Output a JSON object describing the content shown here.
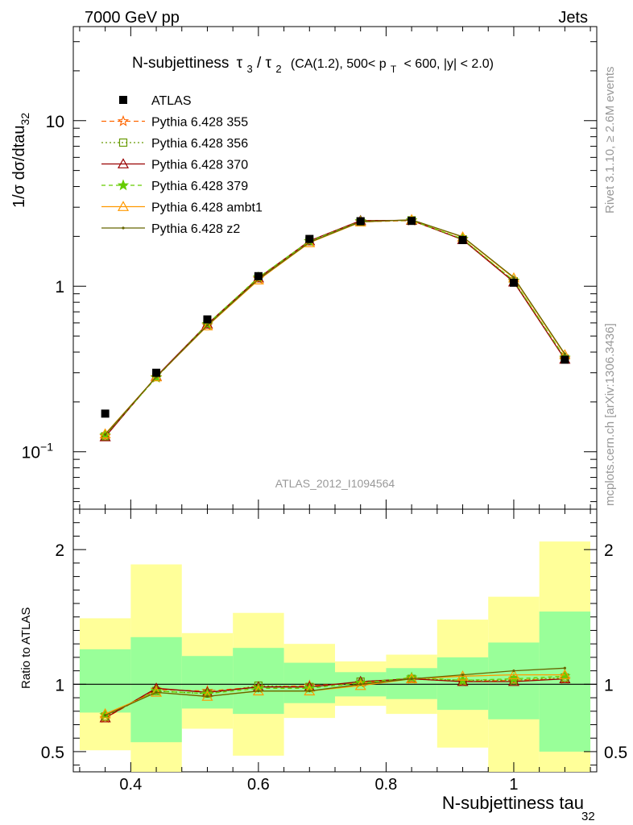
{
  "header": {
    "left": "7000 GeV pp",
    "right": "Jets"
  },
  "side": {
    "rivet": "Rivet 3.1.10, ≥ 2.6M events",
    "mcplots": "mcplots.cern.ch [arXiv:1306.3436]"
  },
  "colors": {
    "ATLAS": "#000000",
    "p355": "#ff6600",
    "p356": "#669900",
    "p370": "#990000",
    "p379": "#66cc00",
    "ambt1": "#ff9900",
    "z2": "#666600",
    "band_inner": "#99ff99",
    "band_outer": "#ffff99"
  },
  "chart_data": {
    "type": "line",
    "title": "N-subjettiness τ₃/τ₂ (CA(1.2), 500< pT < 600, |y| < 2.0)",
    "title_parts": {
      "lead": "N-subjettiness",
      "tau3": "τ",
      "sub3": "3",
      "slash": "/",
      "tau2": "τ",
      "sub2": "2",
      "body": "(CA(1.2), 500< p",
      "subT": "T",
      "tail": "< 600, |y| < 2.0)"
    },
    "ylabel_main": "1/σ dσ/dtau",
    "ylabel_main_sub": "32",
    "ylabel_ratio": "Ratio to ATLAS",
    "xlabel": "N-subjettiness tau",
    "xlabel_sub": "32",
    "watermark": "ATLAS_2012_I1094564",
    "x_range": [
      0.31,
      1.13
    ],
    "y_range_main": [
      0.045,
      37
    ],
    "y_range_ratio": [
      0.35,
      2.3
    ],
    "x_ticks": [
      {
        "v": 0.4,
        "label": "0.4"
      },
      {
        "v": 0.6,
        "label": "0.6"
      },
      {
        "v": 0.8,
        "label": "0.8"
      },
      {
        "v": 1.0,
        "label": "1"
      }
    ],
    "y_ticks_main": [
      {
        "v": 0.1,
        "label": "10",
        "sup": "−1"
      },
      {
        "v": 1,
        "label": "1",
        "sup": ""
      },
      {
        "v": 10,
        "label": "10",
        "sup": ""
      }
    ],
    "y_ticks_ratio": [
      {
        "v": 0.5,
        "label": "0.5"
      },
      {
        "v": 1,
        "label": "1"
      },
      {
        "v": 2,
        "label": "2"
      }
    ],
    "x": [
      0.36,
      0.44,
      0.52,
      0.6,
      0.68,
      0.76,
      0.84,
      0.92,
      1.0,
      1.08
    ],
    "bin_edges": [
      0.32,
      0.4,
      0.48,
      0.56,
      0.64,
      0.72,
      0.8,
      0.88,
      0.96,
      1.04,
      1.12
    ],
    "data": {
      "name": "ATLAS",
      "values": [
        0.17,
        0.3,
        0.63,
        1.15,
        1.93,
        2.47,
        2.48,
        1.9,
        1.05,
        0.36
      ]
    },
    "band_inner": [
      [
        0.79,
        1.26
      ],
      [
        0.57,
        1.35
      ],
      [
        0.82,
        1.21
      ],
      [
        0.78,
        1.27
      ],
      [
        0.86,
        1.16
      ],
      [
        0.91,
        1.09
      ],
      [
        0.89,
        1.12
      ],
      [
        0.81,
        1.2
      ],
      [
        0.74,
        1.31
      ],
      [
        0.5,
        1.54
      ]
    ],
    "band_outer": [
      [
        0.51,
        1.49
      ],
      [
        0.35,
        1.89
      ],
      [
        0.67,
        1.38
      ],
      [
        0.47,
        1.53
      ],
      [
        0.75,
        1.3
      ],
      [
        0.84,
        1.17
      ],
      [
        0.78,
        1.22
      ],
      [
        0.53,
        1.48
      ],
      [
        0.35,
        1.65
      ],
      [
        0.35,
        2.06
      ]
    ],
    "series": [
      {
        "name": "Pythia 6.428 355",
        "key": "p355",
        "marker": "star-open",
        "dash": "6,4",
        "values": [
          0.124,
          0.282,
          0.58,
          1.11,
          1.87,
          2.45,
          2.49,
          1.92,
          1.07,
          0.365
        ]
      },
      {
        "name": "Pythia 6.428 356",
        "key": "p356",
        "marker": "square-open",
        "dash": "2,3",
        "values": [
          0.124,
          0.283,
          0.59,
          1.12,
          1.87,
          2.46,
          2.5,
          1.92,
          1.07,
          0.365
        ]
      },
      {
        "name": "Pythia 6.428 370",
        "key": "p370",
        "marker": "triangle-open",
        "dash": "",
        "values": [
          0.123,
          0.285,
          0.59,
          1.12,
          1.88,
          2.49,
          2.5,
          1.91,
          1.06,
          0.362
        ]
      },
      {
        "name": "Pythia 6.428 379",
        "key": "p379",
        "marker": "star-filled",
        "dash": "5,4",
        "values": [
          0.126,
          0.28,
          0.59,
          1.13,
          1.87,
          2.47,
          2.5,
          1.93,
          1.08,
          0.37
        ]
      },
      {
        "name": "Pythia 6.428 ambt1",
        "key": "ambt1",
        "marker": "triangle-open",
        "dash": "",
        "values": [
          0.128,
          0.283,
          0.575,
          1.09,
          1.83,
          2.44,
          2.52,
          1.98,
          1.12,
          0.385
        ]
      },
      {
        "name": "Pythia 6.428 z2",
        "key": "z2",
        "marker": "dot",
        "dash": "",
        "values": [
          0.127,
          0.283,
          0.58,
          1.1,
          1.84,
          2.45,
          2.52,
          1.99,
          1.13,
          0.39
        ]
      }
    ],
    "ratio_values": {
      "p355": [
        0.75,
        0.96,
        0.95,
        0.98,
        0.99,
        1.01,
        1.04,
        1.02,
        1.03,
        1.04
      ],
      "p356": [
        0.76,
        0.95,
        0.93,
        0.99,
        0.98,
        1.02,
        1.04,
        1.03,
        1.03,
        1.05
      ],
      "p370": [
        0.75,
        0.97,
        0.94,
        0.98,
        0.98,
        1.02,
        1.04,
        1.02,
        1.02,
        1.04
      ],
      "p379": [
        0.77,
        0.95,
        0.93,
        0.97,
        0.97,
        1.01,
        1.05,
        1.03,
        1.04,
        1.06
      ],
      "ambt1": [
        0.78,
        0.94,
        0.91,
        0.95,
        0.95,
        0.99,
        1.04,
        1.06,
        1.07,
        1.07
      ],
      "z2": [
        0.77,
        0.94,
        0.91,
        0.95,
        0.95,
        1.0,
        1.04,
        1.07,
        1.1,
        1.12
      ]
    }
  }
}
